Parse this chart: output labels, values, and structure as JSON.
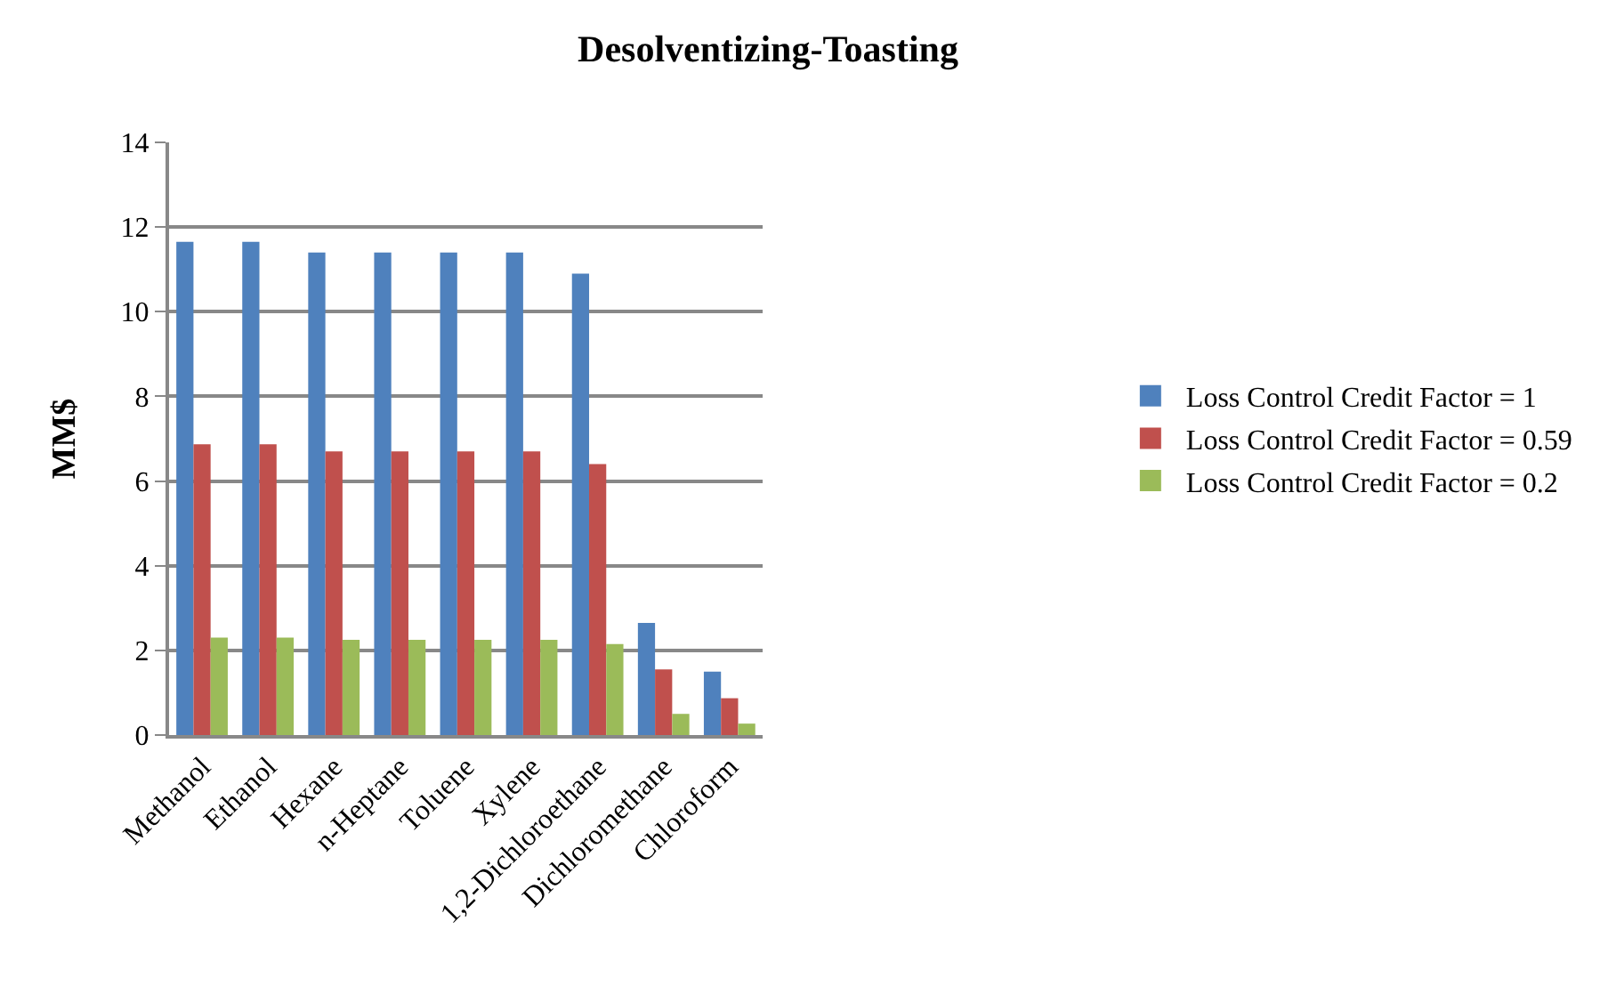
{
  "chart_data": {
    "type": "bar",
    "title": "Desolventizing-Toasting",
    "ylabel": "MM$",
    "categories": [
      "Methanol",
      "Ethanol",
      "Hexane",
      "n-Heptane",
      "Toluene",
      "Xylene",
      "1,2-Dichloroethane",
      "Dichloromethane",
      "Chloroform"
    ],
    "series": [
      {
        "name": "Loss Control Credit Factor = 1",
        "color": "#4f81bd",
        "values": [
          11.65,
          11.65,
          11.4,
          11.4,
          11.4,
          11.4,
          10.9,
          2.65,
          1.5
        ]
      },
      {
        "name": "Loss Control Credit Factor = 0.59",
        "color": "#c0504d",
        "values": [
          6.87,
          6.87,
          6.7,
          6.7,
          6.7,
          6.7,
          6.4,
          1.55,
          0.87
        ]
      },
      {
        "name": "Loss Control Credit Factor = 0.2",
        "color": "#9bbb59",
        "values": [
          2.3,
          2.3,
          2.25,
          2.25,
          2.25,
          2.25,
          2.15,
          0.5,
          0.27
        ]
      }
    ],
    "ylim": [
      0,
      14
    ],
    "yticks": [
      0,
      2,
      4,
      6,
      8,
      10,
      12,
      14
    ],
    "grid": "y",
    "legend": "right"
  }
}
